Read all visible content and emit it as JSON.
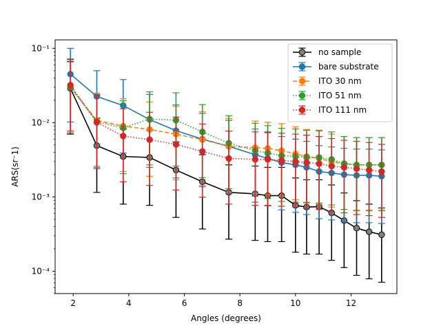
{
  "chart_data": {
    "type": "line",
    "title": "",
    "xlabel": "Angles (degrees)",
    "ylabel": "ARS(sr⁻1)",
    "yscale": "log",
    "xlim": [
      1.35,
      13.65
    ],
    "ylim": [
      5e-05,
      0.13
    ],
    "xticks": [
      2,
      4,
      6,
      8,
      10,
      12
    ],
    "xtick_labels": [
      "2",
      "4",
      "6",
      "8",
      "10",
      "12"
    ],
    "yticks": [
      0.0001,
      0.001,
      0.01,
      0.1
    ],
    "ytick_labels": [
      "10⁻⁴",
      "10⁻³",
      "10⁻²",
      "10⁻¹"
    ],
    "grid": false,
    "legend_position": "top-right",
    "series": [
      {
        "name": "no sample",
        "color": "#000000",
        "marker_face": "#808080",
        "linestyle": "solid",
        "x": [
          1.9,
          2.85,
          3.8,
          4.75,
          5.7,
          6.65,
          7.6,
          8.55,
          9.0,
          9.5,
          10.0,
          10.4,
          10.85,
          11.3,
          11.75,
          12.2,
          12.65,
          13.1
        ],
        "y": [
          0.029,
          0.0049,
          0.0035,
          0.0034,
          0.0023,
          0.0016,
          0.00115,
          0.0011,
          0.00104,
          0.00104,
          0.00077,
          0.00073,
          0.00074,
          0.00061,
          0.00048,
          0.00038,
          0.00034,
          0.00031
        ],
        "yerr_low": [
          0.007,
          0.00115,
          0.0008,
          0.00077,
          0.00053,
          0.00037,
          0.00027,
          0.00026,
          0.00025,
          0.00025,
          0.00018,
          0.00017,
          0.00017,
          0.00014,
          0.000112,
          8.8e-05,
          7.9e-05,
          7.1e-05
        ],
        "yerr_high": [
          0.066,
          0.0115,
          0.0082,
          0.0079,
          0.0055,
          0.0037,
          0.0027,
          0.0026,
          0.0025,
          0.0025,
          0.0018,
          0.0017,
          0.0017,
          0.00145,
          0.00113,
          0.00089,
          0.0008,
          0.00071
        ]
      },
      {
        "name": "bare substrate",
        "color": "#1f77b4",
        "marker_face": "#1f77b4",
        "linestyle": "solid",
        "x": [
          1.9,
          2.85,
          3.8,
          4.75,
          5.7,
          6.65,
          7.6,
          8.55,
          9.0,
          9.5,
          10.0,
          10.4,
          10.85,
          11.3,
          11.75,
          12.2,
          12.65,
          13.1
        ],
        "y": [
          0.045,
          0.0225,
          0.017,
          0.011,
          0.0078,
          0.006,
          0.0048,
          0.0037,
          0.0033,
          0.0029,
          0.0027,
          0.0025,
          0.0022,
          0.0021,
          0.002,
          0.00195,
          0.00195,
          0.0019
        ],
        "yerr_low": [
          0.0102,
          0.0051,
          0.0039,
          0.0025,
          0.0018,
          0.00137,
          0.0011,
          0.00085,
          0.00076,
          0.00067,
          0.00062,
          0.00058,
          0.00051,
          0.00049,
          0.00046,
          0.00045,
          0.00045,
          0.00044
        ],
        "yerr_high": [
          0.1,
          0.05,
          0.038,
          0.024,
          0.0173,
          0.0133,
          0.0107,
          0.0082,
          0.0073,
          0.0065,
          0.006,
          0.0056,
          0.0049,
          0.0047,
          0.0045,
          0.0044,
          0.0044,
          0.0043
        ]
      },
      {
        "name": "ITO 30 nm",
        "color": "#ff7f0e",
        "marker_face": "#ff7f0e",
        "linestyle": "dashed",
        "x": [
          1.9,
          2.85,
          3.8,
          4.75,
          5.7,
          6.65,
          7.6,
          8.55,
          9.0,
          9.5,
          10.0,
          10.4,
          10.85,
          11.3,
          11.75,
          12.2,
          12.65,
          13.1
        ],
        "y": [
          0.03,
          0.0107,
          0.009,
          0.0081,
          0.007,
          0.0059,
          0.0048,
          0.0046,
          0.0045,
          0.0042,
          0.0038,
          0.0035,
          0.0033,
          0.003,
          0.0028,
          0.0027,
          0.0027,
          0.0027
        ],
        "yerr_low": [
          0.0073,
          0.0026,
          0.0022,
          0.0019,
          0.0017,
          0.00143,
          0.00116,
          0.00111,
          0.00109,
          0.00102,
          0.00092,
          0.00085,
          0.0008,
          0.00073,
          0.00068,
          0.00065,
          0.00065,
          0.00065
        ],
        "yerr_high": [
          0.071,
          0.025,
          0.021,
          0.019,
          0.0165,
          0.014,
          0.0113,
          0.0105,
          0.0101,
          0.0097,
          0.0088,
          0.0081,
          0.0077,
          0.007,
          0.0065,
          0.0063,
          0.0063,
          0.0063
        ]
      },
      {
        "name": "ITO 51 nm",
        "color": "#2ca02c",
        "marker_face": "#2ca02c",
        "linestyle": "dotted",
        "x": [
          1.9,
          2.85,
          3.8,
          4.75,
          5.7,
          6.65,
          7.6,
          8.55,
          9.0,
          9.5,
          10.0,
          10.4,
          10.85,
          11.3,
          11.75,
          12.2,
          12.65,
          13.1
        ],
        "y": [
          0.03,
          0.0103,
          0.0085,
          0.0112,
          0.0108,
          0.0075,
          0.0053,
          0.0042,
          0.0039,
          0.0036,
          0.0035,
          0.0034,
          0.0034,
          0.0032,
          0.0028,
          0.0027,
          0.0027,
          0.0027
        ],
        "yerr_low": [
          0.0073,
          0.0025,
          0.00206,
          0.0027,
          0.0026,
          0.00182,
          0.00129,
          0.00102,
          0.00095,
          0.00087,
          0.00085,
          0.00083,
          0.00083,
          0.00078,
          0.00068,
          0.00066,
          0.00066,
          0.00066
        ],
        "yerr_high": [
          0.07,
          0.024,
          0.0198,
          0.026,
          0.0252,
          0.0175,
          0.0124,
          0.0098,
          0.0091,
          0.0084,
          0.0082,
          0.0079,
          0.0079,
          0.0075,
          0.0065,
          0.0063,
          0.0063,
          0.0063
        ]
      },
      {
        "name": "ITO 111 nm",
        "color": "#d62728",
        "marker_face": "#d62728",
        "linestyle": "dotted",
        "x": [
          1.9,
          2.85,
          3.8,
          4.75,
          5.7,
          6.65,
          7.6,
          8.55,
          9.0,
          9.5,
          10.0,
          10.4,
          10.85,
          11.3,
          11.75,
          12.2,
          12.65,
          13.1
        ],
        "y": [
          0.032,
          0.0101,
          0.0066,
          0.0059,
          0.0051,
          0.0041,
          0.0033,
          0.0032,
          0.0032,
          0.0031,
          0.003,
          0.0029,
          0.0028,
          0.0026,
          0.0025,
          0.0024,
          0.0023,
          0.0022
        ],
        "yerr_low": [
          0.0077,
          0.0024,
          0.0016,
          0.00143,
          0.00124,
          0.00099,
          0.0008,
          0.00077,
          0.00077,
          0.00075,
          0.00073,
          0.0007,
          0.00068,
          0.00063,
          0.00061,
          0.00058,
          0.00056,
          0.00053
        ],
        "yerr_high": [
          0.072,
          0.0235,
          0.0154,
          0.0138,
          0.0119,
          0.0096,
          0.0077,
          0.0075,
          0.0075,
          0.0072,
          0.007,
          0.0068,
          0.0065,
          0.0061,
          0.0058,
          0.0056,
          0.0054,
          0.0051
        ]
      }
    ]
  }
}
